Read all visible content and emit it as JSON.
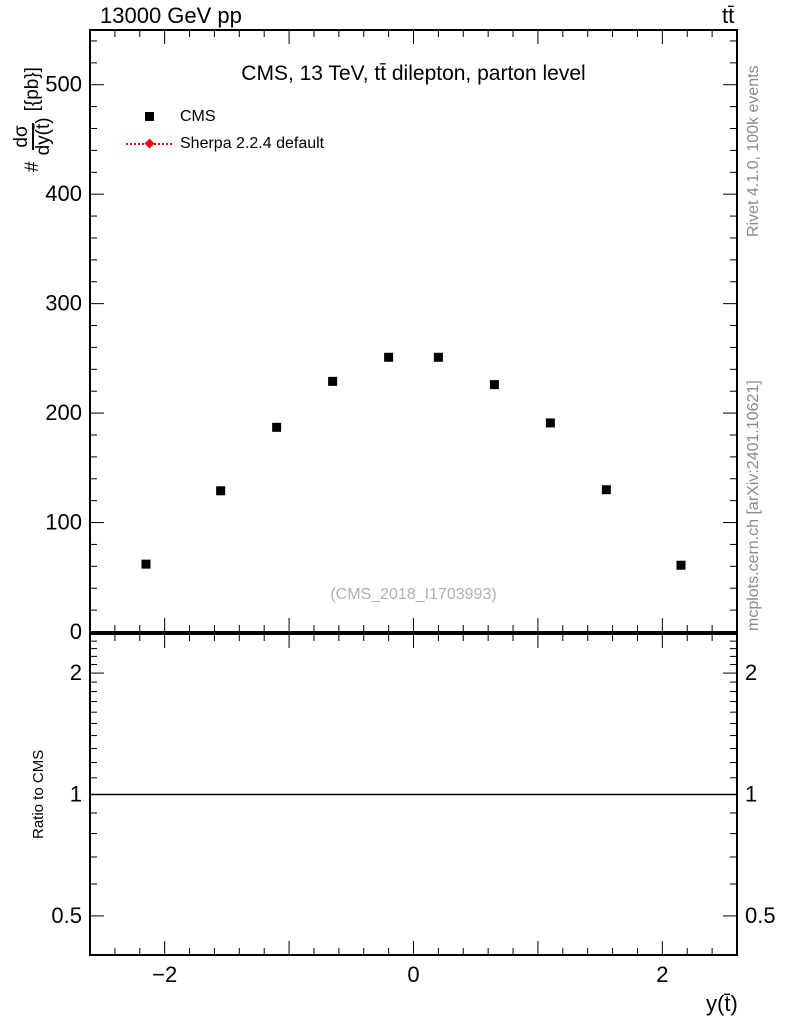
{
  "header": {
    "left_label": "13000 GeV pp",
    "right_label": "tt̄"
  },
  "side_notes": {
    "top": "Rivet 4.1.0,  100k events",
    "bottom": "mcplots.cern.ch [arXiv:2401.10621]"
  },
  "main_plot": {
    "title": "CMS, 13 TeV, tt̄ dilepton, parton level",
    "ylabel": {
      "prefix": "#",
      "numerator": "dσ",
      "denominator": "dy(t̄)",
      "units": "[{pb}]"
    },
    "watermark": "(CMS_2018_I1703993)",
    "legend": [
      {
        "label": "CMS",
        "marker": "filled-square",
        "color": "#000000"
      },
      {
        "label": "Sherpa 2.2.4 default",
        "marker": "diamond-dotted-line",
        "color": "#ff0000"
      }
    ]
  },
  "ratio_plot": {
    "ylabel": "Ratio to CMS"
  },
  "x_axis": {
    "label": "y(t̄)"
  },
  "colors": {
    "data": "#000000",
    "mc": "#ff0000",
    "side_notes": "#8a8a8a",
    "watermark": "#b0b0b0"
  },
  "chart_data": {
    "type": "scatter",
    "title": "CMS, 13 TeV, tt̄ dilepton, parton level",
    "xlabel": "y(t̄)",
    "ylabel": "# dσ/dy(t̄) [{pb}]",
    "xlim": [
      -2.6,
      2.6
    ],
    "ylim": [
      0,
      550
    ],
    "grid": false,
    "legend_position": "top-left",
    "xticks": {
      "values": [
        -2,
        0,
        2
      ],
      "labels": [
        "−2",
        "0",
        "2"
      ],
      "all_major": [
        -2,
        -1,
        0,
        1,
        2
      ],
      "minor_step": 0.2
    },
    "yticks": {
      "values": [
        0,
        100,
        200,
        300,
        400,
        500
      ],
      "labels": [
        "0",
        "100",
        "200",
        "300",
        "400",
        "500"
      ],
      "minor_step": 20
    },
    "series": [
      {
        "name": "CMS",
        "marker": "filled-square",
        "color": "#000000",
        "x": [
          -2.15,
          -1.55,
          -1.1,
          -0.65,
          -0.2,
          0.2,
          0.65,
          1.1,
          1.55,
          2.15
        ],
        "y": [
          62,
          129,
          187,
          229,
          251,
          251,
          226,
          191,
          130,
          61
        ]
      },
      {
        "name": "Sherpa 2.2.4 default",
        "marker": "diamond",
        "color": "#ff0000",
        "linestyle": "dotted",
        "x": [],
        "y": []
      }
    ],
    "ratio_panel": {
      "ylabel": "Ratio to CMS",
      "yscale": "log",
      "ylim": [
        0.4,
        2.5
      ],
      "yticks": {
        "values": [
          0.5,
          1,
          2
        ],
        "labels": [
          "0.5",
          "1",
          "2"
        ]
      },
      "reference_line_y": 1
    }
  }
}
